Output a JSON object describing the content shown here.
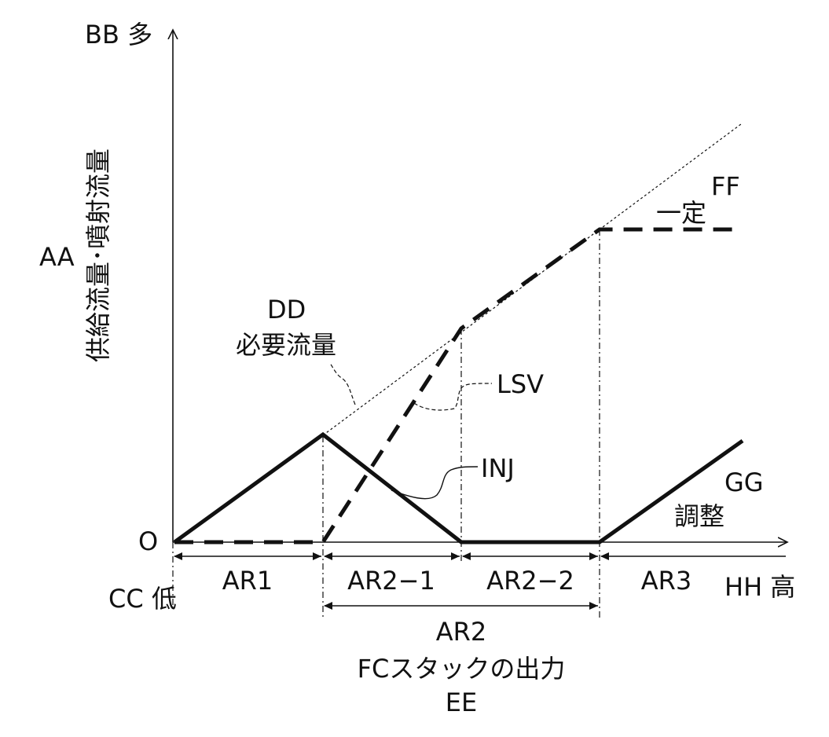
{
  "labels": {
    "bb": "BB 多",
    "aa": "AA",
    "y_axis_title": "供給流量･噴射流量",
    "zero": "O",
    "cc": "CC 低",
    "hh": "HH 高",
    "dd": "DD",
    "required_flow": "必要流量",
    "lsv": "LSV",
    "inj": "INJ",
    "ff": "FF",
    "constant": "一定",
    "gg": "GG",
    "adjust": "調整",
    "ar1": "AR1",
    "ar2_1": "AR2−1",
    "ar2_2": "AR2−2",
    "ar3": "AR3",
    "ar2": "AR2",
    "x_axis_title": "FCスタックの出力",
    "ee": "EE"
  }
}
